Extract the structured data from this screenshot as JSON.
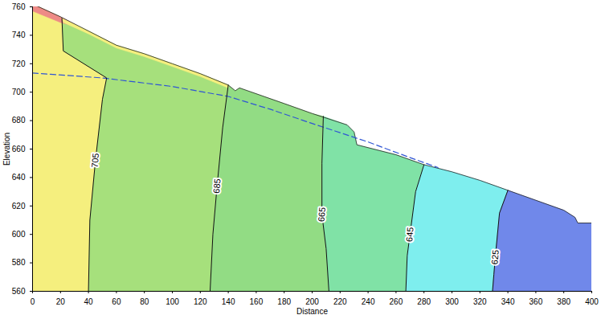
{
  "chart_data": {
    "type": "contour",
    "x_label": "Distance",
    "y_label": "Elevation",
    "xlim": [
      0,
      400
    ],
    "ylim": [
      560,
      760
    ],
    "xticks": [
      0,
      20,
      40,
      60,
      80,
      100,
      120,
      140,
      160,
      180,
      200,
      220,
      240,
      260,
      280,
      300,
      320,
      340,
      360,
      380,
      400
    ],
    "yticks": [
      560,
      580,
      600,
      620,
      640,
      660,
      680,
      700,
      720,
      740,
      760
    ],
    "grid": false,
    "surface": [
      [
        0,
        762
      ],
      [
        20,
        753
      ],
      [
        40,
        743
      ],
      [
        60,
        733
      ],
      [
        80,
        727
      ],
      [
        100,
        720
      ],
      [
        120,
        713
      ],
      [
        140,
        705
      ],
      [
        145,
        701
      ],
      [
        148,
        703
      ],
      [
        180,
        692
      ],
      [
        200,
        685
      ],
      [
        225,
        677
      ],
      [
        230,
        672
      ],
      [
        232,
        663
      ],
      [
        260,
        656
      ],
      [
        280,
        649
      ],
      [
        300,
        644
      ],
      [
        320,
        638
      ],
      [
        340,
        631
      ],
      [
        360,
        624
      ],
      [
        380,
        617
      ],
      [
        388,
        612
      ],
      [
        390,
        608
      ],
      [
        400,
        608
      ]
    ],
    "colors": [
      "#f5ef7e",
      "#a6e07c",
      "#92dc84",
      "#80e2a6",
      "#7eeeee",
      "#7088ea"
    ],
    "contours": [
      {
        "label": "705",
        "points": [
          [
            40,
            560
          ],
          [
            41,
            610
          ],
          [
            45,
            652
          ],
          [
            50,
            695
          ],
          [
            53,
            710
          ],
          [
            22,
            729
          ],
          [
            21,
            752
          ]
        ]
      },
      {
        "label": "685",
        "points": [
          [
            127,
            560
          ],
          [
            129,
            600
          ],
          [
            132,
            634
          ],
          [
            136,
            675
          ],
          [
            140,
            705
          ]
        ]
      },
      {
        "label": "665",
        "points": [
          [
            212,
            560
          ],
          [
            210,
            590
          ],
          [
            207,
            614
          ],
          [
            207,
            650
          ],
          [
            208,
            683
          ]
        ]
      },
      {
        "label": "645",
        "points": [
          [
            267,
            560
          ],
          [
            268,
            585
          ],
          [
            270,
            600
          ],
          [
            274,
            630
          ],
          [
            280,
            649
          ]
        ]
      },
      {
        "label": "625",
        "points": [
          [
            329,
            560
          ],
          [
            330,
            572
          ],
          [
            331,
            584
          ],
          [
            334,
            615
          ],
          [
            340,
            631
          ]
        ]
      }
    ],
    "layers": [
      {
        "color": "#ee8a86",
        "points": [
          [
            0,
            762
          ],
          [
            20,
            753
          ],
          [
            35,
            745
          ],
          [
            20,
            749
          ],
          [
            0,
            757
          ]
        ]
      },
      {
        "color": "#f5ef7e",
        "points": [
          [
            21,
            752
          ],
          [
            40,
            743
          ],
          [
            60,
            733
          ],
          [
            80,
            727
          ],
          [
            100,
            720
          ],
          [
            120,
            713
          ],
          [
            140,
            705
          ],
          [
            140,
            703
          ],
          [
            120,
            711
          ],
          [
            100,
            718
          ],
          [
            80,
            725
          ],
          [
            60,
            731
          ],
          [
            40,
            741
          ],
          [
            22,
            749
          ]
        ]
      }
    ],
    "phreatic_line": {
      "color": "#2f55d4",
      "line_style": "dashed",
      "points": [
        [
          0,
          713.5
        ],
        [
          50,
          710
        ],
        [
          100,
          704
        ],
        [
          140,
          697
        ],
        [
          170,
          688
        ],
        [
          200,
          678
        ],
        [
          240,
          665
        ],
        [
          270,
          654
        ],
        [
          290,
          647
        ]
      ]
    }
  }
}
